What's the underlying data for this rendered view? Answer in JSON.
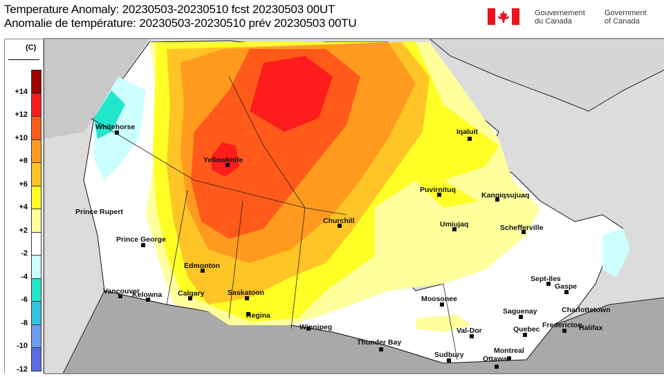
{
  "header": {
    "title_en": "Temperature Anomaly: 20230503-20230510 fcst 20230503 00UT",
    "title_fr": "Anomalie de température: 20230503-20230510 prév 20230503 00TU",
    "gov_fr_line1": "Gouvernement",
    "gov_fr_line2": "du Canada",
    "gov_en_line1": "Government",
    "gov_en_line2": "of Canada",
    "flag_color": "#e8141e"
  },
  "legend": {
    "unit": "(C)",
    "bands": [
      "#a00000",
      "#ff1c1c",
      "#ff5a1a",
      "#ff9a1e",
      "#ffc425",
      "#ffff26",
      "#ffff9c",
      "#ffffff",
      "#ccffff",
      "#22e6cc",
      "#30c4dc",
      "#6e9ef0",
      "#5a6ee6"
    ],
    "ticks": [
      "+14",
      "+12",
      "+10",
      "+8",
      "+6",
      "+4",
      "+2",
      "-2",
      "-4",
      "-6",
      "-8",
      "-10",
      "-12"
    ]
  },
  "cities": [
    {
      "name": "Whitehorse"
    },
    {
      "name": "Yellowknife"
    },
    {
      "name": "Prince Rupert"
    },
    {
      "name": "Prince George"
    },
    {
      "name": "Edmonton"
    },
    {
      "name": "Calgary"
    },
    {
      "name": "Kelowna"
    },
    {
      "name": "Vancouver"
    },
    {
      "name": "Saskatoon"
    },
    {
      "name": "Regina"
    },
    {
      "name": "Winnipeg"
    },
    {
      "name": "Churchill"
    },
    {
      "name": "Iqaluit"
    },
    {
      "name": "Puvirnituq"
    },
    {
      "name": "Kangiqsujuaq"
    },
    {
      "name": "Umiujaq"
    },
    {
      "name": "Schefferville"
    },
    {
      "name": "Sept-Iles"
    },
    {
      "name": "Gaspe"
    },
    {
      "name": "Moosonee"
    },
    {
      "name": "Saguenay"
    },
    {
      "name": "Charlottetown"
    },
    {
      "name": "Fredericton"
    },
    {
      "name": "Halifax"
    },
    {
      "name": "Quebec"
    },
    {
      "name": "Val-Dor"
    },
    {
      "name": "Thunder Bay"
    },
    {
      "name": "Sudbury"
    },
    {
      "name": "Montreal"
    },
    {
      "name": "Ottawa"
    }
  ]
}
